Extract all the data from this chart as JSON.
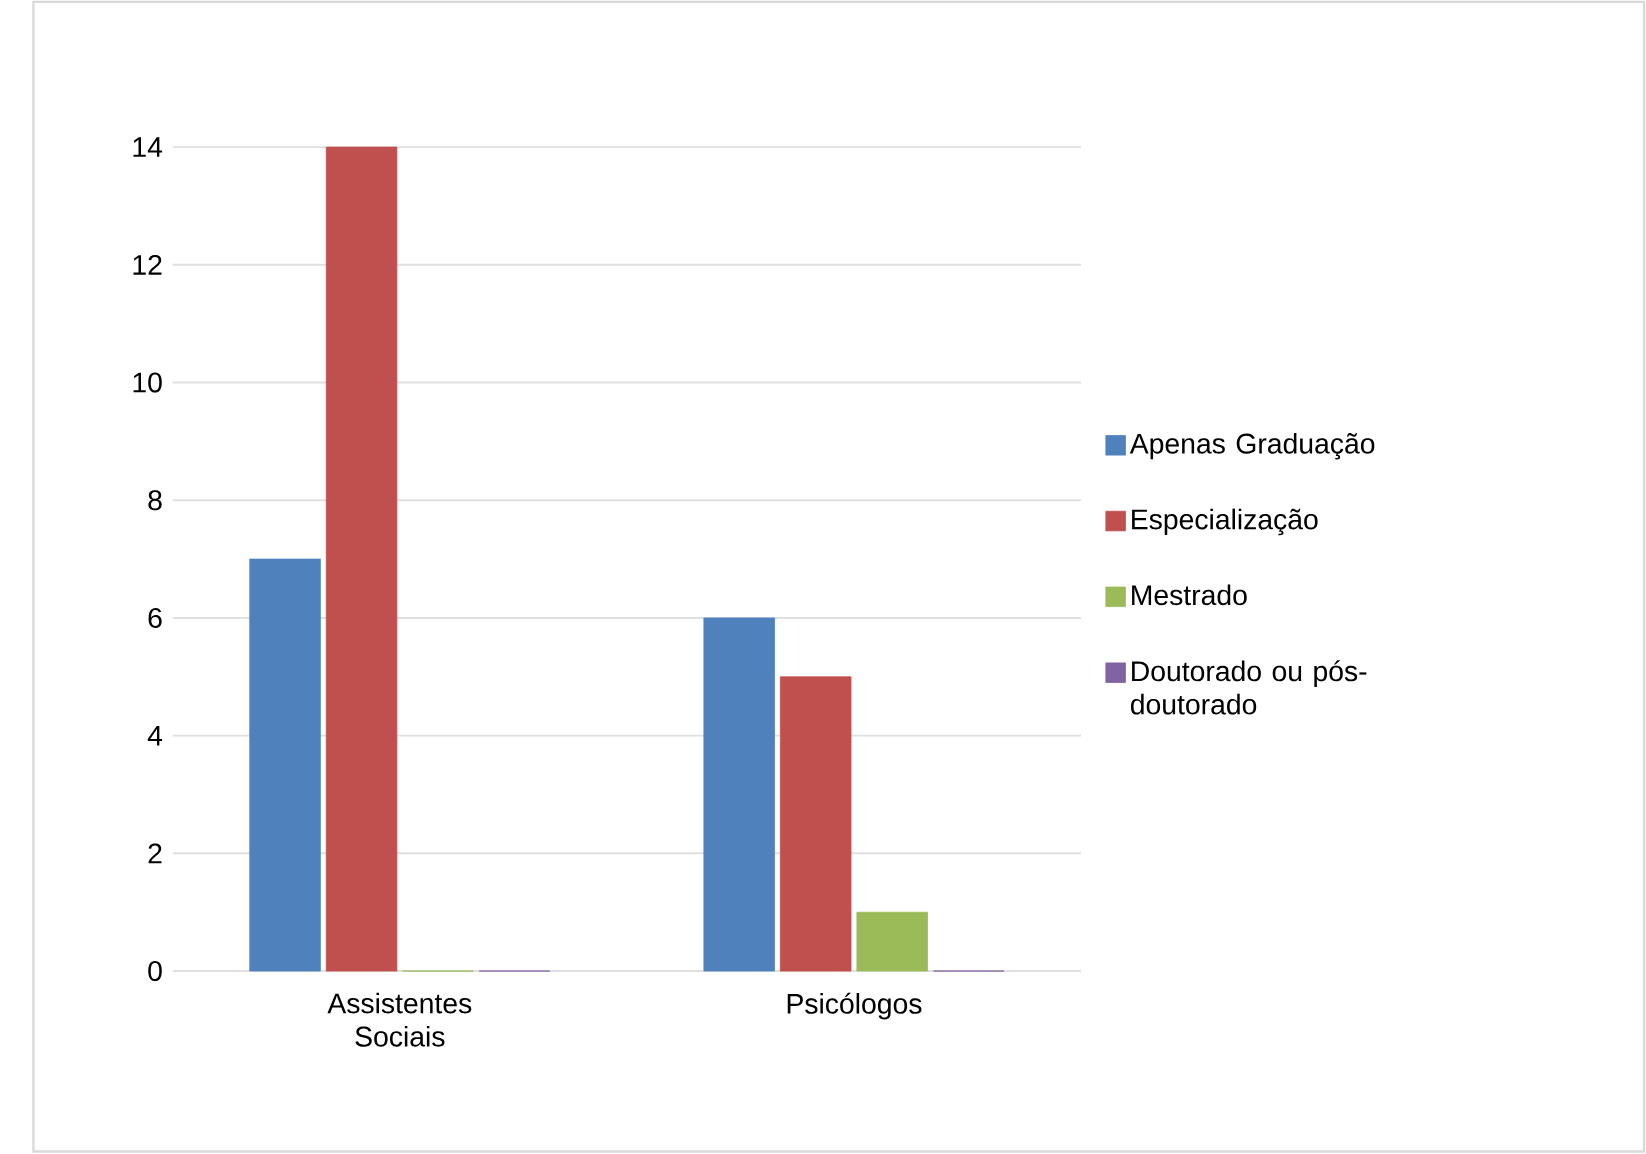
{
  "chart_data": {
    "type": "bar",
    "categories": [
      "Assistentes Sociais",
      "Psicólogos"
    ],
    "series": [
      {
        "name": "Apenas Graduação",
        "color": "#4f81bd",
        "values": [
          7,
          6
        ]
      },
      {
        "name": "Especialização",
        "color": "#c0504d",
        "values": [
          14,
          5
        ]
      },
      {
        "name": "Mestrado",
        "color": "#9bbb59",
        "values": [
          0,
          1
        ]
      },
      {
        "name": "Doutorado ou pós-doutorado",
        "color": "#8064a2",
        "values": [
          0,
          0
        ]
      }
    ],
    "ylim": [
      0,
      14
    ],
    "yticks": [
      0,
      2,
      4,
      6,
      8,
      10,
      12,
      14
    ],
    "grid": "y",
    "legend": "right"
  }
}
